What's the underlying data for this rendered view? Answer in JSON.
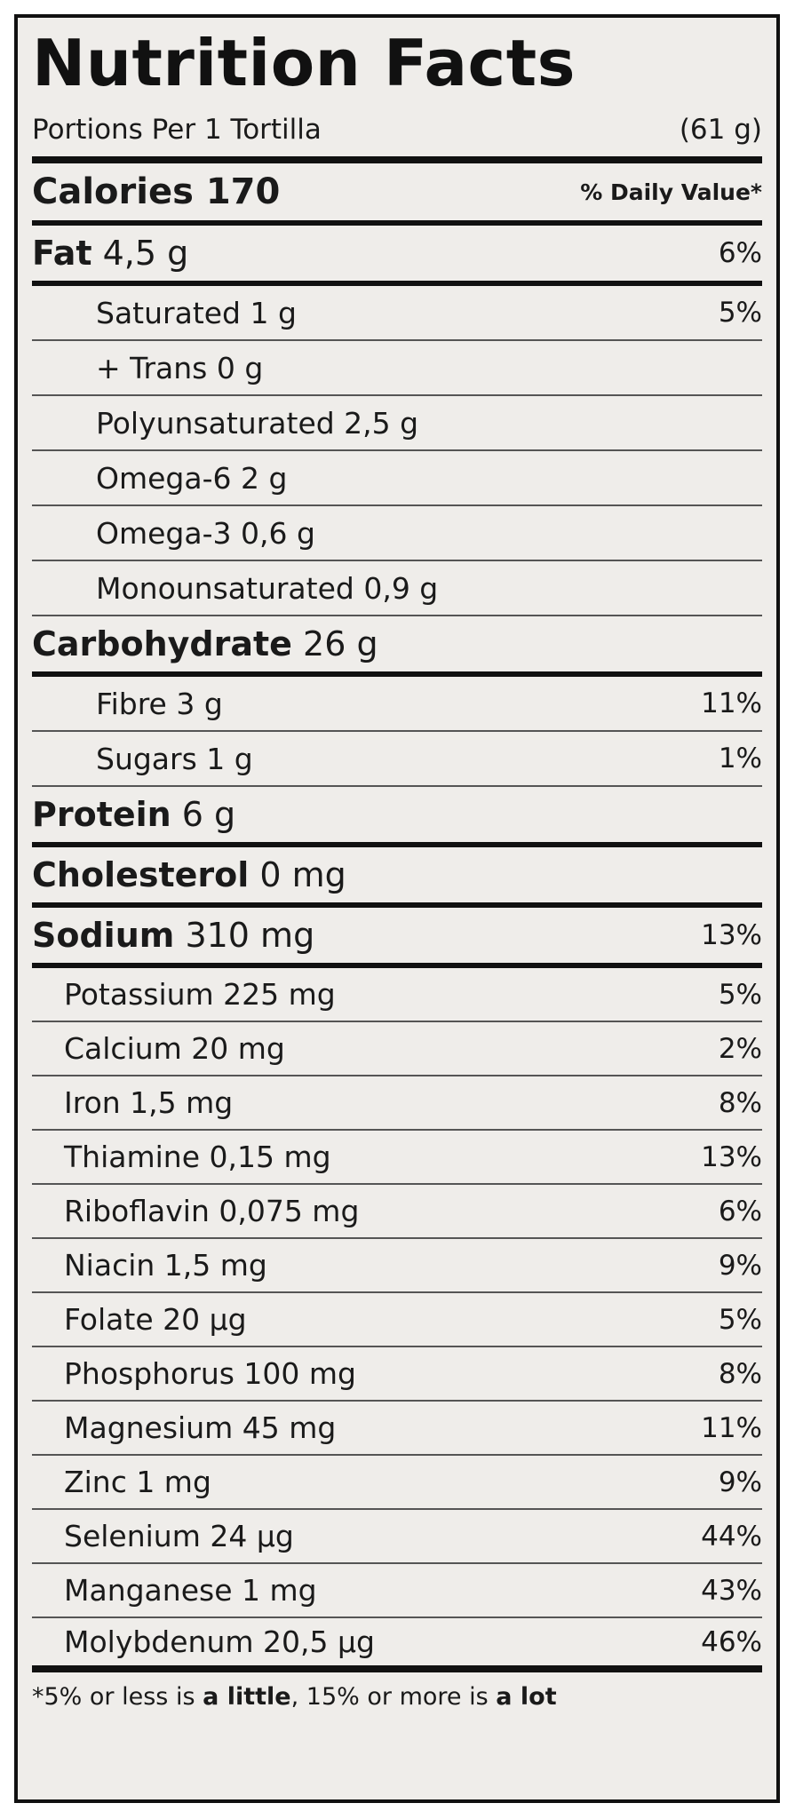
{
  "title": "Nutrition Facts",
  "portions": {
    "label": "Portions Per 1 Tortilla",
    "weight": "(61 g)"
  },
  "calories": {
    "label": "Calories 170",
    "daily_value_header": "% Daily Value*"
  },
  "fat": {
    "name": "Fat",
    "amount": " 4,5 g",
    "pct": "6%",
    "subs": [
      {
        "label": "Saturated 1 g",
        "pct": "5%"
      },
      {
        "label": "+ Trans 0 g",
        "pct": ""
      },
      {
        "label": "Polyunsaturated 2,5 g",
        "pct": ""
      },
      {
        "label": "Omega-6 2 g",
        "pct": ""
      },
      {
        "label": "Omega-3 0,6 g",
        "pct": ""
      },
      {
        "label": "Monounsaturated 0,9 g",
        "pct": ""
      }
    ]
  },
  "carbohydrate": {
    "name": "Carbohydrate",
    "amount": " 26 g",
    "pct": "",
    "subs": [
      {
        "label": "Fibre 3 g",
        "pct": "11%"
      },
      {
        "label": "Sugars 1 g",
        "pct": "1%"
      }
    ]
  },
  "protein": {
    "name": "Protein",
    "amount": " 6 g",
    "pct": ""
  },
  "cholesterol": {
    "name": "Cholesterol",
    "amount": " 0 mg",
    "pct": ""
  },
  "sodium": {
    "name": "Sodium",
    "amount": " 310 mg",
    "pct": "13%"
  },
  "nutrients": [
    {
      "label": "Potassium 225 mg",
      "pct": "5%"
    },
    {
      "label": "Calcium 20 mg",
      "pct": "2%"
    },
    {
      "label": "Iron 1,5 mg",
      "pct": "8%"
    },
    {
      "label": "Thiamine 0,15 mg",
      "pct": "13%"
    },
    {
      "label": "Riboflavin 0,075 mg",
      "pct": "6%"
    },
    {
      "label": "Niacin 1,5 mg",
      "pct": "9%"
    },
    {
      "label": "Folate 20 µg",
      "pct": "5%"
    },
    {
      "label": "Phosphorus 100 mg",
      "pct": "8%"
    },
    {
      "label": "Magnesium 45 mg",
      "pct": "11%"
    },
    {
      "label": "Zinc 1 mg",
      "pct": "9%"
    },
    {
      "label": "Selenium 24 µg",
      "pct": "44%"
    },
    {
      "label": "Manganese 1 mg",
      "pct": "43%"
    },
    {
      "label": "Molybdenum 20,5 µg",
      "pct": "46%"
    }
  ],
  "footnote": {
    "part1": "*5% or less is ",
    "bold1": "a little",
    "part2": ", 15% or more is ",
    "bold2": "a lot"
  }
}
